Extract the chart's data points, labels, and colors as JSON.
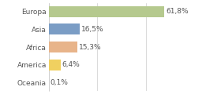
{
  "categories": [
    "Europa",
    "Asia",
    "Africa",
    "America",
    "Oceania"
  ],
  "values": [
    61.8,
    16.5,
    15.3,
    6.4,
    0.1
  ],
  "bar_colors": [
    "#b5c98e",
    "#7b9dc5",
    "#e8b48a",
    "#f0d060",
    "#f5c0a0"
  ],
  "labels": [
    "61,8%",
    "16,5%",
    "15,3%",
    "6,4%",
    "0,1%"
  ],
  "background_color": "#ffffff",
  "xlim": [
    0,
    78
  ],
  "bar_height": 0.62,
  "label_fontsize": 6.5,
  "ytick_fontsize": 6.5,
  "grid_ticks": [
    0,
    26,
    52,
    78
  ],
  "text_color": "#555555",
  "grid_color": "#cccccc"
}
